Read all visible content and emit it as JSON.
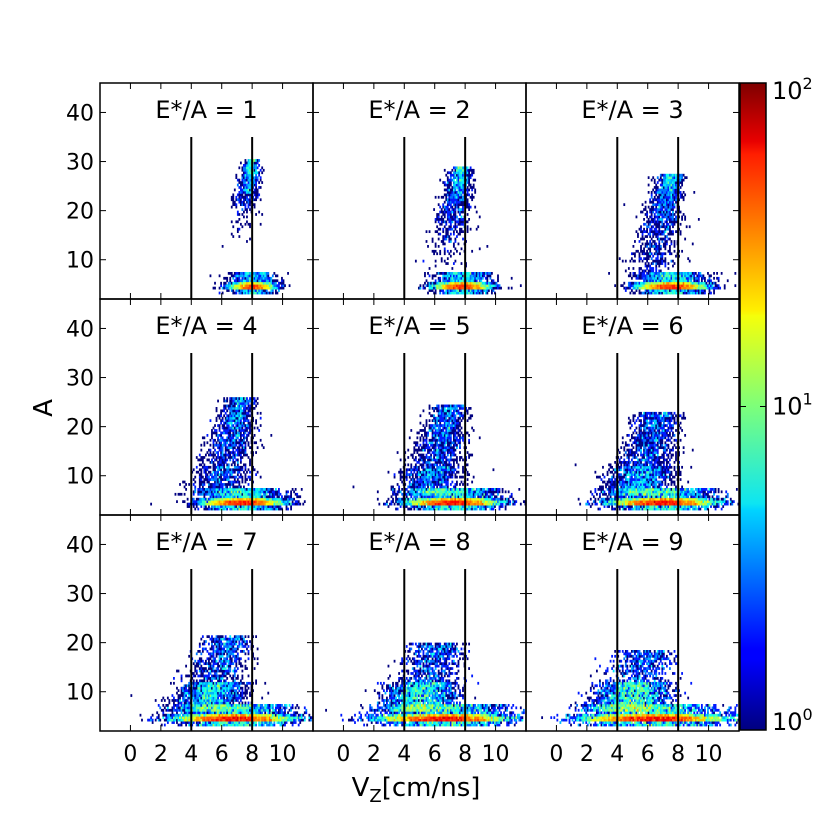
{
  "chart_data": {
    "type": "heatmap",
    "xlabel": "V_Z[cm/ns]",
    "xlabel_main": "V",
    "xlabel_sub": "Z",
    "xlabel_rest": "[cm/ns]",
    "ylabel": "A",
    "xlim": [
      -2,
      12
    ],
    "ylim": [
      2,
      46
    ],
    "xticks": [
      0,
      2,
      4,
      6,
      8,
      10
    ],
    "yticks": [
      10,
      20,
      30,
      40
    ],
    "vertical_lines": {
      "x": [
        4,
        8
      ],
      "y_top": 35
    },
    "color_scale": {
      "type": "log",
      "colormap": "jet",
      "min": 1,
      "max": 100,
      "tick_bases": [
        "10",
        "10",
        "10"
      ],
      "tick_exponents": [
        "0",
        "1",
        "2"
      ],
      "tick_values": [
        1,
        10,
        100
      ]
    },
    "panels": [
      {
        "title": "E*/A = 1",
        "ea": 1
      },
      {
        "title": "E*/A = 2",
        "ea": 2
      },
      {
        "title": "E*/A = 3",
        "ea": 3
      },
      {
        "title": "E*/A = 4",
        "ea": 4
      },
      {
        "title": "E*/A = 5",
        "ea": 5
      },
      {
        "title": "E*/A = 6",
        "ea": 6
      },
      {
        "title": "E*/A = 7",
        "ea": 7
      },
      {
        "title": "E*/A = 8",
        "ea": 8
      },
      {
        "title": "E*/A = 9",
        "ea": 9
      }
    ]
  }
}
